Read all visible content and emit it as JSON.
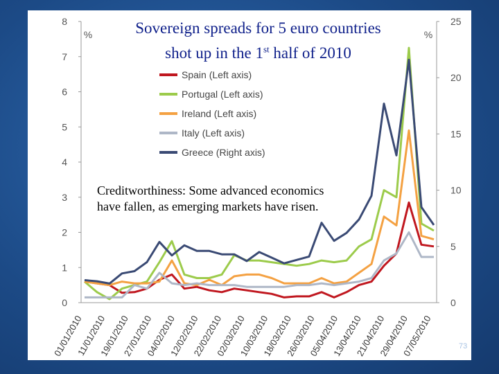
{
  "slide": {
    "title_line1": "Sovereign spreads for 5 euro countries",
    "title_line2_pre": "shot up in the 1",
    "title_line2_sup": "st",
    "title_line2_post": " half of 2010",
    "note_line1": "Creditworthiness:  Some advanced economics",
    "note_line2": "have fallen, as emerging markets have risen.",
    "page_number": "73"
  },
  "chart_data": {
    "type": "line",
    "title": "Sovereign spreads for 5 euro countries shot up in the 1st half of 2010",
    "xlabel": "",
    "left_axis": {
      "unit": "%",
      "min": 0,
      "max": 8,
      "ticks": [
        "0",
        "1",
        "2",
        "3",
        "4",
        "5",
        "6",
        "7",
        "8"
      ]
    },
    "right_axis": {
      "unit": "%",
      "min": 0,
      "max": 25,
      "ticks": [
        "0",
        "5",
        "10",
        "15",
        "20",
        "25"
      ]
    },
    "x_ticks": [
      "01/01/2010",
      "11/01/2010",
      "19/01/2010",
      "27/01/2010",
      "04/02/2010",
      "12/02/2010",
      "22/02/2010",
      "02/03/2010",
      "10/03/2010",
      "18/03/2010",
      "26/03/2010",
      "05/04/2010",
      "13/04/2010",
      "21/04/2010",
      "29/04/2010",
      "07/05/2010"
    ],
    "legend_position": "top-center",
    "series": [
      {
        "name": "Spain (Left axis)",
        "axis": "left",
        "color": "#c0171f",
        "values": [
          0.6,
          0.55,
          0.5,
          0.28,
          0.3,
          0.4,
          0.65,
          0.8,
          0.4,
          0.45,
          0.35,
          0.3,
          0.4,
          0.35,
          0.3,
          0.25,
          0.15,
          0.18,
          0.18,
          0.3,
          0.15,
          0.3,
          0.5,
          0.6,
          1.05,
          1.4,
          2.85,
          1.65,
          1.6
        ]
      },
      {
        "name": "Portugal (Left axis)",
        "axis": "left",
        "color": "#9ccb4b",
        "values": [
          0.6,
          0.3,
          0.1,
          0.4,
          0.5,
          0.6,
          1.15,
          1.75,
          0.8,
          0.7,
          0.7,
          0.8,
          1.35,
          1.2,
          1.2,
          1.15,
          1.1,
          1.05,
          1.1,
          1.2,
          1.15,
          1.2,
          1.6,
          1.8,
          3.2,
          3.0,
          7.25,
          2.25,
          2.05
        ]
      },
      {
        "name": "Ireland (Left axis)",
        "axis": "left",
        "color": "#f4a142",
        "values": [
          0.6,
          0.55,
          0.5,
          0.6,
          0.55,
          0.55,
          0.6,
          1.2,
          0.55,
          0.5,
          0.65,
          0.5,
          0.75,
          0.8,
          0.8,
          0.7,
          0.55,
          0.55,
          0.55,
          0.7,
          0.55,
          0.6,
          0.85,
          1.1,
          2.45,
          2.2,
          4.9,
          1.9,
          1.8
        ]
      },
      {
        "name": "Italy (Left axis)",
        "axis": "left",
        "color": "#aeb7c7",
        "values": [
          0.15,
          0.15,
          0.15,
          0.15,
          0.5,
          0.4,
          0.85,
          0.55,
          0.5,
          0.55,
          0.5,
          0.5,
          0.5,
          0.45,
          0.45,
          0.45,
          0.45,
          0.5,
          0.5,
          0.55,
          0.5,
          0.55,
          0.6,
          0.7,
          1.2,
          1.4,
          2.0,
          1.3,
          1.3
        ]
      },
      {
        "name": "Greece (Right axis)",
        "axis": "right",
        "color": "#3a4a74",
        "values": [
          2.0,
          1.9,
          1.7,
          2.6,
          2.8,
          3.6,
          5.4,
          4.2,
          5.1,
          4.6,
          4.6,
          4.3,
          4.3,
          3.7,
          4.5,
          4.0,
          3.5,
          3.8,
          4.1,
          7.1,
          5.5,
          6.2,
          7.4,
          9.5,
          17.7,
          13.1,
          21.6,
          8.5,
          6.9
        ]
      }
    ]
  }
}
